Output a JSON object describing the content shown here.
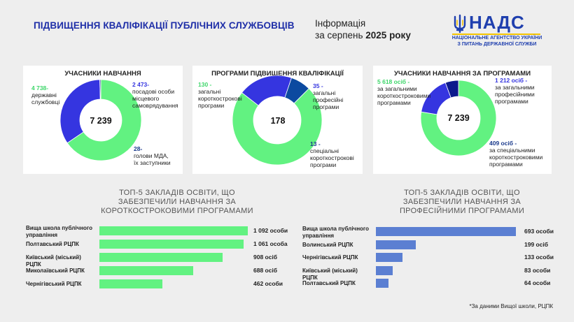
{
  "header": {
    "title": "ПІДВИЩЕННЯ КВАЛІФІКАЦІЇ ПУБЛІЧНИХ СЛУЖБОВЦІВ",
    "info_line1": "Інформація",
    "info_line2_prefix": "за серпень ",
    "info_line2_bold": "2025 року"
  },
  "logo": {
    "abbr": "НАДС",
    "sub_line1": "НАЦІОНАЛЬНЕ АГЕНТСТВО УКРАЇНИ",
    "sub_line2": "З ПИТАНЬ ДЕРЖАВНОЇ СЛУЖБИ",
    "colors": {
      "blue": "#1f3fae",
      "yellow": "#f2c200"
    },
    "icon": "trident-icon"
  },
  "colors": {
    "green": "#62f281",
    "blue": "#3535e0",
    "navy": "#0c1a8c",
    "bar_green": "#62f281",
    "bar_blue": "#5b7fd2"
  },
  "chart_data": [
    {
      "type": "pie",
      "title": "УЧАСНИКИ НАВЧАННЯ",
      "total": "7 239",
      "slices": [
        {
          "value": 4738,
          "num": "4 738-",
          "text": "державні\nслужбовці",
          "color": "#62f281"
        },
        {
          "value": 2473,
          "num": "2 473-",
          "text": "посадові особи\nмісцевого\nсамоврядування",
          "color": "#3535e0"
        },
        {
          "value": 28,
          "num": "28-",
          "text": "голови МДА,\nїх заступники",
          "color": "#0c1a8c"
        }
      ]
    },
    {
      "type": "pie",
      "title": "ПРОГРАМИ ПІДВИЩЕННЯ КВАЛІФІКАЦІЇ",
      "total": "178",
      "slices": [
        {
          "value": 130,
          "num": "130 -",
          "text": "загальні\nкороткострокові\nпрограми",
          "color": "#62f281"
        },
        {
          "value": 35,
          "num": "35 -",
          "text": "загальні\nпрофесійні\nпрограми",
          "color": "#3535e0"
        },
        {
          "value": 13,
          "num": "13 -",
          "text": "спеціальні\nкороткострокові\nпрограми",
          "color": "#0c4aa0"
        }
      ]
    },
    {
      "type": "pie",
      "title": "УЧАСНИКИ НАВЧАННЯ ЗА ПРОГРАМАМИ",
      "total": "7 239",
      "slices": [
        {
          "value": 5618,
          "num": "5 618 осіб -",
          "text": "за загальними\nкороткостроковими\nпрограмами",
          "color": "#62f281"
        },
        {
          "value": 1212,
          "num": "1 212 осіб -",
          "text": "за загальними\nпрофесійними\nпрограмами",
          "color": "#3535e0"
        },
        {
          "value": 409,
          "num": "409 осіб -",
          "text": "за спеціальними\nкороткостроковими\nпрограмами",
          "color": "#0c1a8c"
        }
      ]
    },
    {
      "type": "bar",
      "title": "ТОП-5 ЗАКЛАДІВ ОСВІТИ, ЩО\nЗАБЕЗПЕЧИЛИ НАВЧАННЯ ЗА\nКОРОТКОСТРОКОВИМИ ПРОГРАМАМИ",
      "categories": [
        "Вища школа публічного\nуправління",
        "Полтавський РЦПК",
        "Київський (міський) РЦПК",
        "Миколаївський РЦПК",
        "Чернігівський РЦПК"
      ],
      "values": [
        1092,
        1061,
        908,
        688,
        462
      ],
      "value_labels": [
        "1 092 особи",
        "1 061 особа",
        "908 осіб",
        "688 осіб",
        "462 особи"
      ],
      "color": "#62f281"
    },
    {
      "type": "bar",
      "title": "ТОП-5 ЗАКЛАДІВ ОСВІТИ, ЩО\nЗАБЕЗПЕЧИЛИ НАВЧАННЯ ЗА\nПРОФЕСІЙНИМИ ПРОГРАМАМИ",
      "categories": [
        "Вища школа публічного\nуправління",
        "Волинський РЦПК",
        "Чернігівський РЦПК",
        "Київський (міський) РЦПК",
        "Полтавський РЦПК"
      ],
      "values": [
        693,
        199,
        133,
        83,
        64
      ],
      "value_labels": [
        "693 особи",
        "199 осіб",
        "133 особи",
        "83 особи",
        "64 особи"
      ],
      "color": "#5b7fd2"
    }
  ],
  "footnote": "*За даними Вищої школи, РЦПК"
}
